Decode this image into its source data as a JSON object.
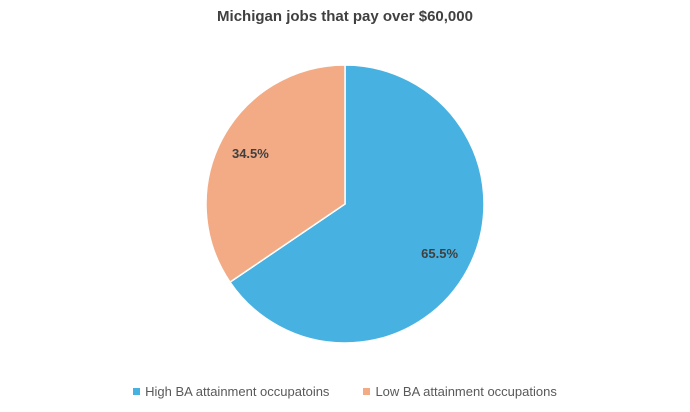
{
  "chart_data": {
    "type": "pie",
    "title": "Michigan jobs that pay over $60,000",
    "categories": [
      "High BA attainment occupatoins",
      "Low BA attainment occupations"
    ],
    "values": [
      65.5,
      34.5
    ],
    "labels": [
      "65.5%",
      "34.5%"
    ],
    "colors": [
      "#47B1E1",
      "#F2AB85"
    ],
    "legend_position": "bottom",
    "start_angle_deg": 0,
    "direction": "clockwise"
  }
}
